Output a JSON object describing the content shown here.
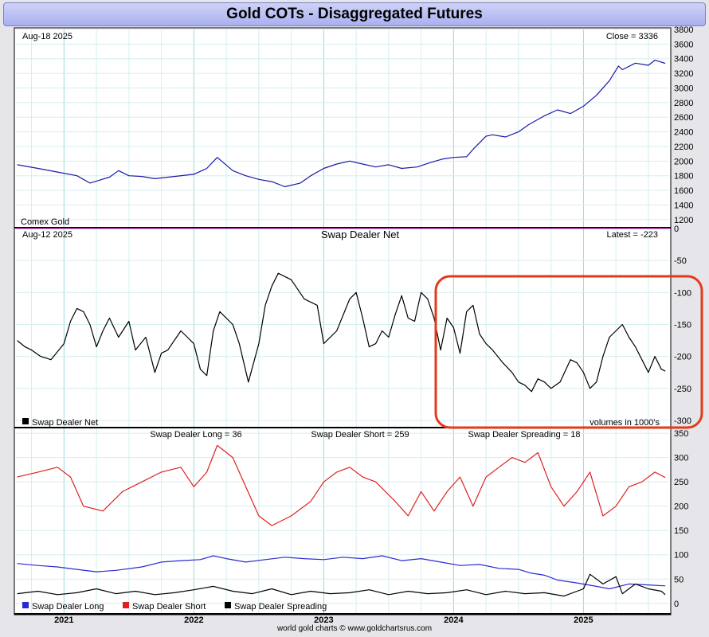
{
  "title": "Gold COTs - Disaggregated Futures",
  "footer": "world gold charts © www.goldchartsrus.com",
  "colors": {
    "price": "#1a1aa8",
    "net": "#000000",
    "long": "#2a2ad0",
    "short": "#e02020",
    "spreading": "#000000",
    "highlight": "#e23a1a",
    "zero_line": "#cc33cc"
  },
  "chart_data": [
    {
      "panel": "price",
      "type": "line",
      "top_left_label": "Aug-18  2025",
      "top_right_label": "Close = 3336",
      "bottom_left_label": "Comex Gold",
      "ylim": [
        1100,
        3800
      ],
      "yticks": [
        1200,
        1400,
        1600,
        1800,
        2000,
        2200,
        2400,
        2600,
        2800,
        3000,
        3200,
        3400,
        3600,
        3800
      ],
      "x": [
        2020.64,
        2020.8,
        2020.95,
        2021.1,
        2021.2,
        2021.35,
        2021.42,
        2021.5,
        2021.6,
        2021.7,
        2021.85,
        2022.0,
        2022.1,
        2022.18,
        2022.3,
        2022.4,
        2022.5,
        2022.6,
        2022.7,
        2022.82,
        2022.9,
        2023.0,
        2023.1,
        2023.2,
        2023.3,
        2023.4,
        2023.5,
        2023.6,
        2023.72,
        2023.82,
        2023.92,
        2024.0,
        2024.1,
        2024.15,
        2024.25,
        2024.3,
        2024.4,
        2024.5,
        2024.58,
        2024.7,
        2024.8,
        2024.9,
        2025.0,
        2025.1,
        2025.2,
        2025.27,
        2025.3,
        2025.4,
        2025.5,
        2025.55,
        2025.63
      ],
      "y": [
        1950,
        1900,
        1850,
        1800,
        1700,
        1780,
        1870,
        1800,
        1790,
        1760,
        1790,
        1820,
        1900,
        2050,
        1870,
        1800,
        1750,
        1720,
        1650,
        1700,
        1800,
        1900,
        1960,
        2000,
        1960,
        1920,
        1950,
        1900,
        1920,
        1980,
        2030,
        2050,
        2060,
        2160,
        2340,
        2360,
        2330,
        2400,
        2500,
        2620,
        2700,
        2650,
        2750,
        2900,
        3100,
        3300,
        3250,
        3340,
        3310,
        3380,
        3336
      ]
    },
    {
      "panel": "net",
      "type": "line",
      "series_name": "Swap Dealer Net",
      "top_left_label": "Aug-12  2025",
      "top_center_label": "Swap Dealer Net",
      "top_right_label": "Latest = -223",
      "bottom_right_label": "volumes in 1000's",
      "ylim": [
        -310,
        0
      ],
      "yticks": [
        0,
        -50,
        -100,
        -150,
        -200,
        -250,
        -300
      ],
      "x": [
        2020.64,
        2020.7,
        2020.75,
        2020.82,
        2020.9,
        2021.0,
        2021.05,
        2021.1,
        2021.15,
        2021.2,
        2021.25,
        2021.3,
        2021.35,
        2021.42,
        2021.5,
        2021.55,
        2021.63,
        2021.7,
        2021.75,
        2021.8,
        2021.9,
        2021.95,
        2022.0,
        2022.05,
        2022.1,
        2022.15,
        2022.2,
        2022.3,
        2022.35,
        2022.42,
        2022.5,
        2022.55,
        2022.6,
        2022.65,
        2022.75,
        2022.85,
        2022.95,
        2023.0,
        2023.1,
        2023.2,
        2023.25,
        2023.3,
        2023.35,
        2023.4,
        2023.45,
        2023.5,
        2023.55,
        2023.6,
        2023.65,
        2023.7,
        2023.75,
        2023.8,
        2023.85,
        2023.9,
        2023.95,
        2024.0,
        2024.05,
        2024.1,
        2024.15,
        2024.2,
        2024.25,
        2024.3,
        2024.38,
        2024.45,
        2024.5,
        2024.55,
        2024.6,
        2024.65,
        2024.7,
        2024.75,
        2024.82,
        2024.9,
        2024.95,
        2025.0,
        2025.05,
        2025.1,
        2025.15,
        2025.2,
        2025.25,
        2025.3,
        2025.35,
        2025.4,
        2025.45,
        2025.5,
        2025.55,
        2025.6,
        2025.63
      ],
      "y": [
        -175,
        -185,
        -190,
        -200,
        -205,
        -180,
        -145,
        -125,
        -130,
        -150,
        -185,
        -160,
        -140,
        -170,
        -145,
        -190,
        -170,
        -225,
        -195,
        -190,
        -160,
        -170,
        -180,
        -220,
        -230,
        -160,
        -130,
        -150,
        -180,
        -240,
        -180,
        -120,
        -90,
        -70,
        -80,
        -110,
        -120,
        -180,
        -160,
        -110,
        -100,
        -140,
        -185,
        -180,
        -160,
        -170,
        -135,
        -105,
        -140,
        -145,
        -100,
        -110,
        -140,
        -190,
        -140,
        -155,
        -195,
        -130,
        -120,
        -165,
        -180,
        -190,
        -210,
        -225,
        -240,
        -245,
        -255,
        -235,
        -240,
        -250,
        -240,
        -205,
        -210,
        -225,
        -250,
        -240,
        -200,
        -170,
        -160,
        -150,
        -170,
        -185,
        -205,
        -225,
        -200,
        -220,
        -223
      ]
    },
    {
      "panel": "positions",
      "type": "line",
      "ylim": [
        -20,
        360
      ],
      "yticks": [
        0,
        50,
        100,
        150,
        200,
        250,
        300,
        350
      ],
      "series": [
        {
          "name": "Swap Dealer Long",
          "label": "Swap Dealer Long = 36",
          "x": [
            2020.64,
            2020.8,
            2020.95,
            2021.1,
            2021.25,
            2021.4,
            2021.6,
            2021.75,
            2021.9,
            2022.05,
            2022.15,
            2022.25,
            2022.4,
            2022.55,
            2022.7,
            2022.85,
            2023.0,
            2023.15,
            2023.3,
            2023.45,
            2023.6,
            2023.75,
            2023.9,
            2024.05,
            2024.2,
            2024.35,
            2024.5,
            2024.6,
            2024.7,
            2024.8,
            2024.95,
            2025.1,
            2025.2,
            2025.35,
            2025.5,
            2025.63
          ],
          "y": [
            82,
            78,
            75,
            70,
            65,
            68,
            75,
            85,
            88,
            90,
            98,
            92,
            85,
            90,
            95,
            92,
            90,
            95,
            92,
            98,
            88,
            92,
            85,
            78,
            80,
            72,
            70,
            62,
            58,
            48,
            42,
            35,
            30,
            40,
            38,
            36
          ]
        },
        {
          "name": "Swap Dealer Short",
          "label": "Swap Dealer Short = 259",
          "x": [
            2020.64,
            2020.8,
            2020.95,
            2021.05,
            2021.15,
            2021.3,
            2021.45,
            2021.6,
            2021.75,
            2021.9,
            2022.0,
            2022.1,
            2022.18,
            2022.3,
            2022.4,
            2022.5,
            2022.6,
            2022.75,
            2022.9,
            2023.0,
            2023.1,
            2023.2,
            2023.3,
            2023.4,
            2023.55,
            2023.65,
            2023.75,
            2023.85,
            2023.95,
            2024.05,
            2024.15,
            2024.25,
            2024.35,
            2024.45,
            2024.55,
            2024.65,
            2024.75,
            2024.85,
            2024.95,
            2025.05,
            2025.15,
            2025.25,
            2025.35,
            2025.45,
            2025.55,
            2025.63
          ],
          "y": [
            260,
            270,
            280,
            260,
            200,
            190,
            230,
            250,
            270,
            280,
            240,
            270,
            325,
            300,
            240,
            180,
            160,
            180,
            210,
            250,
            270,
            280,
            260,
            250,
            210,
            180,
            230,
            190,
            230,
            260,
            200,
            260,
            280,
            300,
            290,
            310,
            240,
            200,
            230,
            270,
            180,
            200,
            240,
            250,
            270,
            259
          ]
        },
        {
          "name": "Swap Dealer Spreading",
          "label": "Swap Dealer Spreading = 18",
          "x": [
            2020.64,
            2020.8,
            2020.95,
            2021.1,
            2021.25,
            2021.4,
            2021.55,
            2021.7,
            2021.85,
            2022.0,
            2022.15,
            2022.3,
            2022.45,
            2022.6,
            2022.75,
            2022.9,
            2023.05,
            2023.2,
            2023.35,
            2023.5,
            2023.65,
            2023.8,
            2023.95,
            2024.1,
            2024.25,
            2024.4,
            2024.55,
            2024.7,
            2024.85,
            2025.0,
            2025.05,
            2025.15,
            2025.25,
            2025.3,
            2025.4,
            2025.5,
            2025.6,
            2025.63
          ],
          "y": [
            20,
            25,
            18,
            22,
            30,
            20,
            25,
            18,
            22,
            28,
            35,
            25,
            20,
            30,
            18,
            25,
            20,
            22,
            28,
            18,
            25,
            20,
            22,
            28,
            18,
            25,
            20,
            22,
            15,
            30,
            60,
            40,
            55,
            20,
            40,
            30,
            25,
            18
          ]
        }
      ]
    }
  ],
  "x_axis": {
    "labels": [
      "2021",
      "2022",
      "2023",
      "2024",
      "2025"
    ]
  },
  "legend": [
    "Swap Dealer Long",
    "Swap Dealer Short",
    "Swap Dealer Spreading"
  ],
  "swap_net_legend": "Swap Dealer Net"
}
